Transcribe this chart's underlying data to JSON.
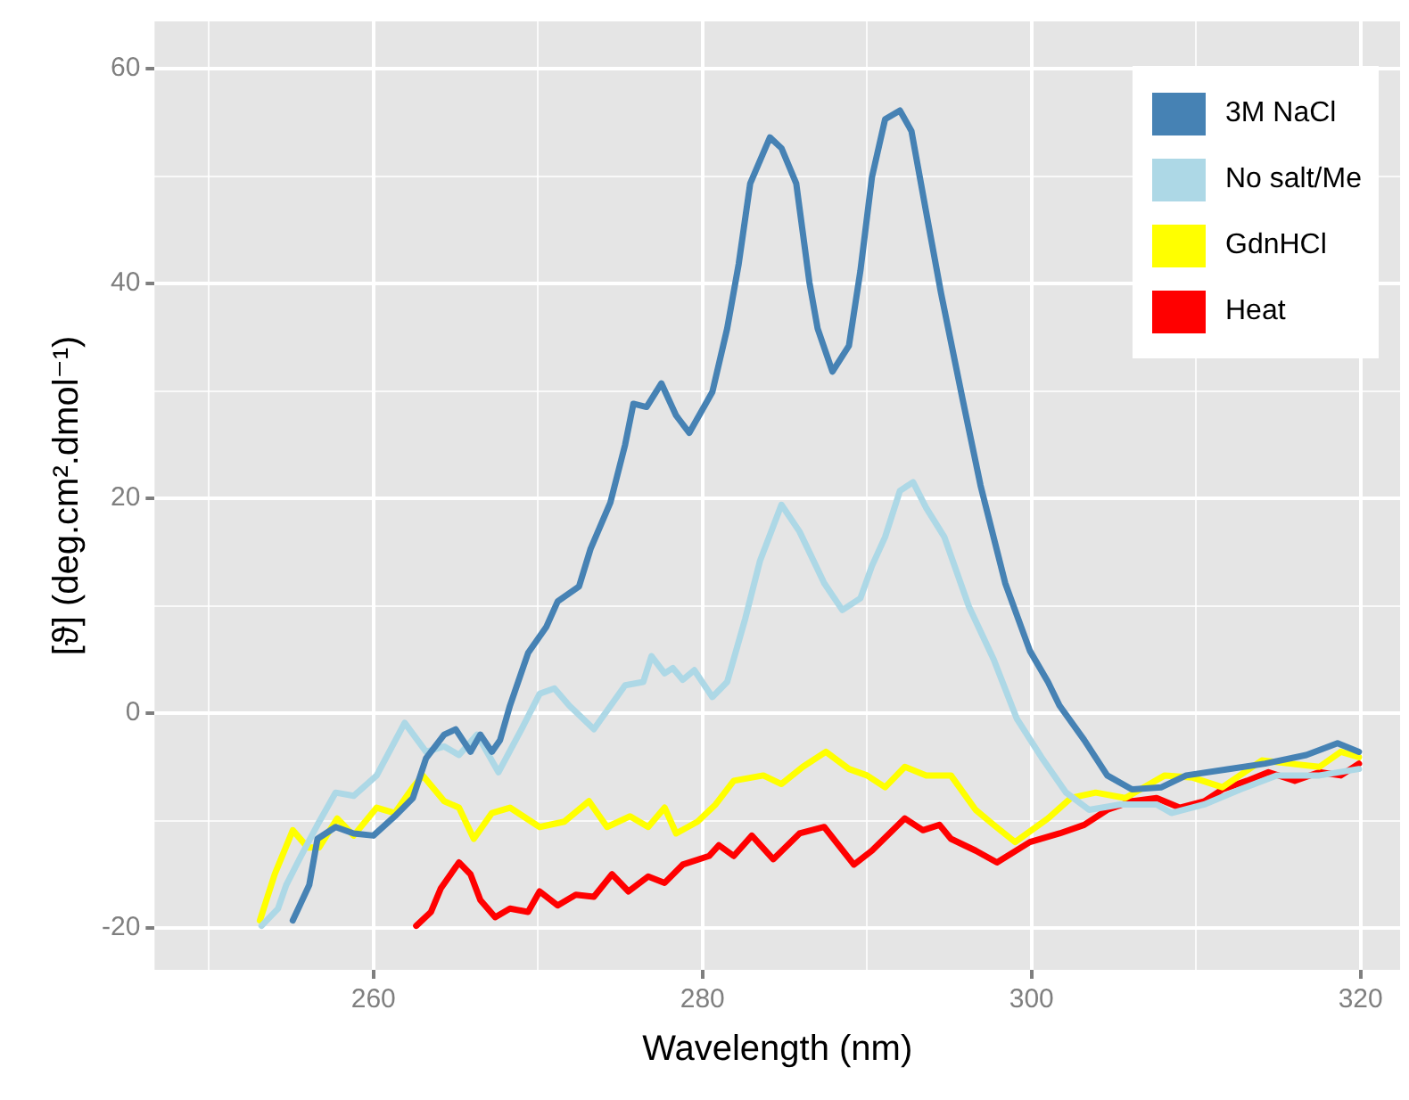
{
  "chart_data": {
    "type": "line",
    "xlabel": "Wavelength (nm)",
    "ylabel": "[ϑ] (deg.cm².dmol⁻¹)",
    "xlim": [
      246.7,
      322.4
    ],
    "ylim": [
      -23.9,
      64.4
    ],
    "xticks": [
      {
        "value": 250,
        "label": null
      },
      260,
      {
        "value": 270,
        "label": null
      },
      280,
      {
        "value": 290,
        "label": null
      },
      300,
      {
        "value": 310,
        "label": null
      },
      320
    ],
    "yticks": [
      -20,
      {
        "value": -10,
        "label": null
      },
      0,
      {
        "value": 10,
        "label": null
      },
      20,
      {
        "value": 30,
        "label": null
      },
      40,
      {
        "value": 50,
        "label": null
      },
      60
    ],
    "grid": true,
    "legend": "top right",
    "marker": "none",
    "line_style": "solid",
    "series": [
      {
        "name": "3M NaCl",
        "color": "#4682b4",
        "x": [
          255.1,
          256.1,
          256.6,
          257.7,
          258.8,
          260.0,
          261.3,
          262.4,
          263.2,
          264.3,
          265.0,
          265.9,
          266.5,
          267.2,
          267.7,
          268.3,
          269.4,
          270.5,
          271.2,
          272.5,
          273.2,
          274.4,
          275.3,
          275.8,
          276.6,
          277.5,
          278.4,
          279.2,
          280.6,
          281.5,
          282.2,
          282.9,
          284.1,
          284.8,
          285.7,
          286.5,
          287.0,
          287.9,
          288.9,
          289.6,
          290.3,
          291.1,
          292.0,
          292.7,
          293.6,
          294.5,
          295.8,
          296.9,
          298.4,
          299.9,
          301.0,
          301.7,
          303.2,
          304.6,
          306.1,
          307.9,
          309.4,
          312.0,
          314.2,
          316.7,
          318.6,
          319.9
        ],
        "values": [
          -19.3,
          -16.0,
          -11.7,
          -10.6,
          -11.2,
          -11.4,
          -9.6,
          -7.9,
          -4.2,
          -2.0,
          -1.5,
          -3.6,
          -2.0,
          -3.6,
          -2.5,
          0.7,
          5.6,
          8.0,
          10.4,
          11.8,
          15.3,
          19.6,
          25.0,
          28.8,
          28.5,
          30.7,
          27.7,
          26.1,
          29.9,
          35.8,
          41.8,
          49.3,
          53.6,
          52.6,
          49.3,
          40.1,
          35.8,
          31.8,
          34.2,
          41.2,
          49.9,
          55.3,
          56.1,
          54.2,
          46.6,
          39.1,
          29.3,
          21.2,
          12.1,
          5.8,
          2.9,
          0.7,
          -2.5,
          -5.8,
          -7.1,
          -6.9,
          -5.8,
          -5.2,
          -4.7,
          -3.9,
          -2.8,
          -3.6
        ]
      },
      {
        "name": "No salt/Me",
        "color": "#add8e6",
        "x": [
          253.2,
          254.2,
          254.7,
          255.6,
          256.6,
          257.7,
          258.8,
          260.2,
          261.9,
          263.2,
          264.3,
          265.2,
          266.3,
          267.6,
          269.0,
          270.1,
          271.0,
          271.9,
          273.4,
          275.3,
          276.4,
          276.9,
          277.7,
          278.2,
          278.8,
          279.5,
          280.6,
          281.5,
          282.6,
          283.5,
          284.8,
          285.9,
          287.4,
          288.5,
          289.6,
          290.3,
          291.1,
          292.0,
          292.8,
          293.6,
          294.7,
          296.2,
          297.7,
          299.1,
          300.6,
          302.1,
          303.5,
          305.4,
          307.6,
          308.5,
          310.5,
          312.7,
          314.9,
          317.5,
          319.9
        ],
        "values": [
          -19.8,
          -18.2,
          -16.0,
          -13.3,
          -10.4,
          -7.4,
          -7.7,
          -5.8,
          -0.9,
          -3.6,
          -3.1,
          -3.9,
          -2.0,
          -5.5,
          -1.5,
          1.8,
          2.3,
          0.7,
          -1.5,
          2.6,
          2.9,
          5.3,
          3.7,
          4.2,
          3.1,
          4.0,
          1.5,
          2.9,
          8.8,
          14.2,
          19.4,
          16.9,
          12.1,
          9.6,
          10.7,
          13.7,
          16.4,
          20.7,
          21.5,
          19.1,
          16.4,
          9.9,
          5.0,
          -0.5,
          -4.1,
          -7.4,
          -9.0,
          -8.5,
          -8.5,
          -9.3,
          -8.5,
          -7.1,
          -5.8,
          -5.8,
          -5.2
        ]
      },
      {
        "name": "GdnHCl",
        "color": "#ffff00",
        "x": [
          253.1,
          254.0,
          255.1,
          256.0,
          256.7,
          257.8,
          258.8,
          260.2,
          261.3,
          262.4,
          263.0,
          264.3,
          265.2,
          266.1,
          267.2,
          268.3,
          270.1,
          271.6,
          273.1,
          274.2,
          275.6,
          276.7,
          277.7,
          278.4,
          279.7,
          280.8,
          281.9,
          283.7,
          284.8,
          286.1,
          287.5,
          288.9,
          290.0,
          291.1,
          292.3,
          293.6,
          295.1,
          296.6,
          297.7,
          299.0,
          301.0,
          302.4,
          303.9,
          305.7,
          308.1,
          309.8,
          311.6,
          314.0,
          315.7,
          317.5,
          318.8,
          319.9
        ],
        "values": [
          -19.3,
          -15.0,
          -10.9,
          -12.5,
          -12.5,
          -9.8,
          -11.4,
          -8.8,
          -9.3,
          -6.9,
          -5.8,
          -8.2,
          -8.8,
          -11.7,
          -9.3,
          -8.8,
          -10.6,
          -10.1,
          -8.2,
          -10.6,
          -9.6,
          -10.6,
          -8.8,
          -11.2,
          -10.1,
          -8.5,
          -6.3,
          -5.8,
          -6.6,
          -5.0,
          -3.6,
          -5.2,
          -5.8,
          -6.9,
          -5.0,
          -5.8,
          -5.8,
          -9.0,
          -10.4,
          -12.0,
          -9.8,
          -7.9,
          -7.4,
          -7.9,
          -5.8,
          -6.0,
          -6.9,
          -4.4,
          -4.7,
          -5.0,
          -3.6,
          -4.1
        ]
      },
      {
        "name": "Heat",
        "color": "#ff0000",
        "x": [
          262.6,
          263.5,
          264.1,
          265.2,
          265.9,
          266.5,
          267.4,
          268.3,
          269.4,
          270.1,
          271.2,
          272.3,
          273.4,
          274.5,
          275.5,
          276.7,
          277.7,
          278.8,
          280.4,
          281.0,
          281.9,
          283.0,
          284.3,
          285.9,
          287.4,
          289.2,
          290.3,
          292.3,
          293.4,
          294.4,
          295.1,
          296.6,
          297.9,
          299.9,
          301.7,
          303.2,
          304.6,
          306.1,
          307.6,
          309.0,
          310.5,
          311.6,
          313.1,
          314.4,
          316.0,
          317.5,
          318.8,
          319.9
        ],
        "values": [
          -19.8,
          -18.5,
          -16.3,
          -13.9,
          -15.0,
          -17.4,
          -19.0,
          -18.2,
          -18.5,
          -16.6,
          -17.9,
          -16.9,
          -17.1,
          -15.0,
          -16.6,
          -15.2,
          -15.8,
          -14.1,
          -13.3,
          -12.3,
          -13.3,
          -11.4,
          -13.6,
          -11.2,
          -10.6,
          -14.1,
          -12.8,
          -9.8,
          -10.9,
          -10.4,
          -11.7,
          -12.8,
          -13.9,
          -12.0,
          -11.2,
          -10.4,
          -9.0,
          -8.2,
          -7.9,
          -8.8,
          -8.2,
          -7.1,
          -6.3,
          -5.5,
          -6.3,
          -5.5,
          -5.8,
          -4.7
        ]
      }
    ]
  }
}
